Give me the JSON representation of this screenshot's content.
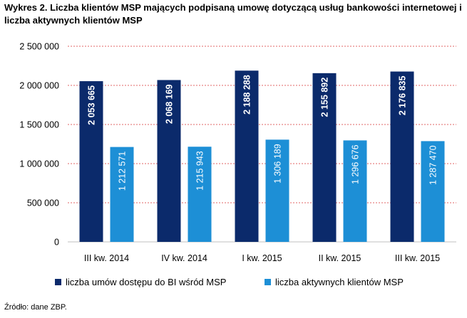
{
  "title": "Wykres 2. Liczba klientów MSP mających podpisaną umowę dotyczącą usług bankowości internetowej i liczba aktywnych klientów MSP",
  "source": "Źródło: dane ZBP.",
  "colors": {
    "series1": "#0b2a6b",
    "series2": "#1d8fd6",
    "gridline": "#e06666",
    "axis": "#bfbfbf"
  },
  "chart_data": {
    "type": "bar",
    "title": "Wykres 2. Liczba klientów MSP mających podpisaną umowę dotyczącą usług bankowości internetowej i liczba aktywnych klientów MSP",
    "xlabel": "",
    "ylabel": "",
    "ylim": [
      0,
      2500000
    ],
    "yticks": [
      0,
      500000,
      1000000,
      1500000,
      2000000,
      2500000
    ],
    "ytick_labels": [
      "0",
      "500 000",
      "1 000 000",
      "1 500 000",
      "2 000 000",
      "2 500 000"
    ],
    "grid": true,
    "legend_position": "bottom",
    "categories": [
      "III kw. 2014",
      "IV kw. 2014",
      "I kw. 2015",
      "II kw. 2015",
      "III kw. 2015"
    ],
    "series": [
      {
        "name": "liczba umów dostępu do BI wśród MSP",
        "values": [
          2053665,
          2068169,
          2188288,
          2155892,
          2176835
        ],
        "labels": [
          "2 053 665",
          "2 068 169",
          "2 188 288",
          "2 155 892",
          "2 176 835"
        ]
      },
      {
        "name": "liczba aktywnych klientów MSP",
        "values": [
          1212571,
          1215943,
          1306189,
          1296676,
          1287470
        ],
        "labels": [
          "1 212 571",
          "1 215 943",
          "1 306 189",
          "1 296 676",
          "1 287 470"
        ]
      }
    ]
  }
}
